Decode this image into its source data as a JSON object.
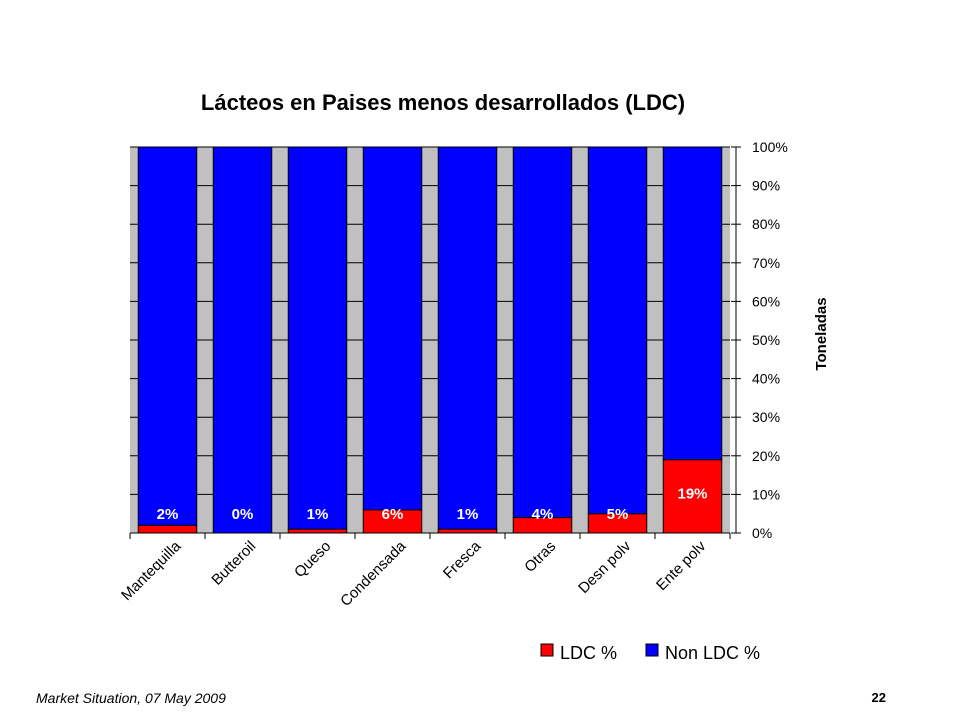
{
  "chart_data": {
    "type": "bar",
    "stacked": true,
    "title": "Lácteos en Paises menos desarrollados (LDC)",
    "ylabel": "Toneladas",
    "xlabel": "",
    "y_axis_position": "right",
    "ylim": [
      0,
      100
    ],
    "y_ticks": [
      "0%",
      "10%",
      "20%",
      "30%",
      "40%",
      "50%",
      "60%",
      "70%",
      "80%",
      "90%",
      "100%"
    ],
    "categories": [
      "Mantequilla",
      "Butteroil",
      "Queso",
      "Condensada",
      "Fresca",
      "Otras",
      "Desn polv",
      "Ente polv"
    ],
    "series": [
      {
        "name": "LDC %",
        "color": "#ff0000",
        "values": [
          2,
          0,
          1,
          6,
          1,
          4,
          5,
          19
        ]
      },
      {
        "name": "Non LDC %",
        "color": "#0000ff",
        "values": [
          98,
          100,
          99,
          94,
          99,
          96,
          95,
          81
        ]
      }
    ],
    "data_labels": [
      "2%",
      "0%",
      "1%",
      "6%",
      "1%",
      "4%",
      "5%",
      "19%"
    ],
    "plot_background": "#c0c0c0",
    "grid": true,
    "legend_position": "bottom-right"
  },
  "footer": {
    "left": "Market Situation, 07 May 2009",
    "page_number": "22"
  }
}
